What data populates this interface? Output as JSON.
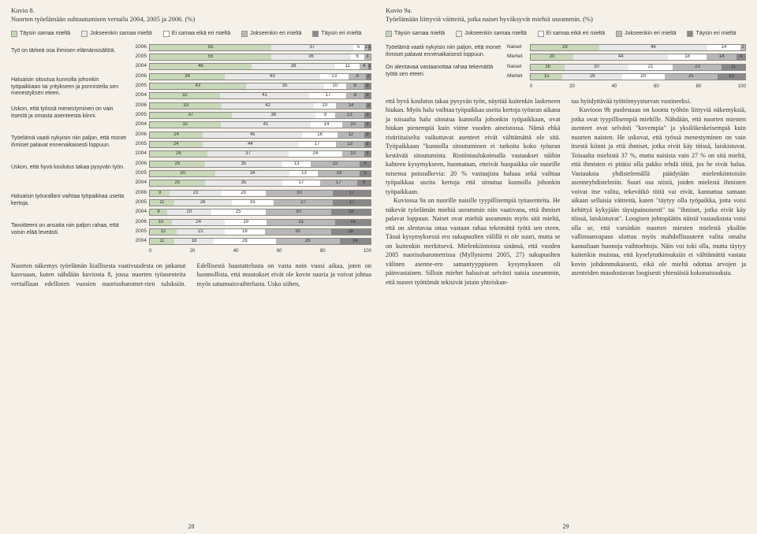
{
  "colors": {
    "c1": "#c8d8b8",
    "c2": "#e8e8e8",
    "c3": "#ffffff",
    "c4": "#b8b8b8",
    "c5": "#888888"
  },
  "left": {
    "kuvio_num": "Kuvio 8.",
    "kuvio_title": "Nuorten työelämään suhtautumisen vertailu 2004, 2005 ja 2006. (%)",
    "legend": [
      {
        "label": "Täysin samaa mieltä",
        "color": "c1"
      },
      {
        "label": "Jokseenkin samaa mieltä",
        "color": "c2"
      },
      {
        "label": "Ei samaa eikä eri mieltä",
        "color": "c3"
      },
      {
        "label": "Jokseenkin eri mieltä",
        "color": "c4"
      },
      {
        "label": "Täysin eri mieltä",
        "color": "c5"
      }
    ],
    "rows": [
      {
        "label": "Työ on tärkeä osa ihmisen elämänsisältöä.",
        "bars": [
          {
            "year": "2006",
            "v": [
              55,
              37,
              5,
              2,
              1
            ]
          },
          {
            "year": "2005",
            "v": [
              55,
              36,
              6,
              3,
              0
            ]
          },
          {
            "year": "2004",
            "v": [
              46,
              38,
              11,
              4,
              1
            ]
          }
        ]
      },
      {
        "label": "Haluaisin sitoutua kunnolla johonkin työpaikkaan tai yritykseen ja ponnistella sen menestyksen eteen.",
        "bars": [
          {
            "year": "2006",
            "v": [
              34,
              43,
              13,
              8,
              2
            ]
          },
          {
            "year": "2005",
            "v": [
              43,
              35,
              10,
              8,
              3
            ]
          },
          {
            "year": "2004",
            "v": [
              32,
              41,
              17,
              8,
              3
            ]
          }
        ]
      },
      {
        "label": "Uskon, että työssä menestyminen on vain itsestä ja omasta asenteesta kiinni.",
        "bars": [
          {
            "year": "2006",
            "v": [
              33,
              42,
              10,
              14,
              2
            ]
          },
          {
            "year": "2005",
            "v": [
              37,
              38,
              9,
              13,
              3
            ]
          },
          {
            "year": "2004",
            "v": [
              32,
              41,
              14,
              10,
              3
            ]
          }
        ]
      },
      {
        "label": "Työelämä vaatii nykyisin niin paljon, että monet ihmiset palavat ennenaikaisesti loppuun.",
        "bars": [
          {
            "year": "2006",
            "v": [
              24,
              45,
              16,
              12,
              3
            ]
          },
          {
            "year": "2005",
            "v": [
              24,
              44,
              17,
              13,
              3
            ]
          },
          {
            "year": "2004",
            "v": [
              26,
              37,
              24,
              10,
              3
            ]
          }
        ]
      },
      {
        "label": "Uskon, että hyvä koulutus takaa pysyvän työn.",
        "bars": [
          {
            "year": "2006",
            "v": [
              25,
              35,
              13,
              22,
              5
            ]
          },
          {
            "year": "2005",
            "v": [
              30,
              34,
              13,
              19,
              5
            ]
          },
          {
            "year": "2004",
            "v": [
              25,
              35,
              17,
              17,
              6
            ]
          }
        ]
      },
      {
        "label": "Haluaisin työurallani vaihtaa työpaikkaa useita kertoja.",
        "bars": [
          {
            "year": "2006",
            "v": [
              9,
              23,
              20,
              30,
              17
            ]
          },
          {
            "year": "2005",
            "v": [
              11,
              26,
              19,
              27,
              17
            ]
          },
          {
            "year": "2004",
            "v": [
              8,
              20,
              25,
              30,
              18
            ]
          }
        ]
      },
      {
        "label": "Tavoitteeni on ansaita niin paljon rahaa, että voisin elää leveästi.",
        "bars": [
          {
            "year": "2006",
            "v": [
              10,
              24,
              19,
              31,
              16
            ]
          },
          {
            "year": "2005",
            "v": [
              12,
              22,
              18,
              30,
              18
            ]
          },
          {
            "year": "2004",
            "v": [
              11,
              18,
              28,
              29,
              14
            ]
          }
        ]
      }
    ],
    "axis": [
      "0",
      "20",
      "40",
      "60",
      "80",
      "100"
    ],
    "body": "Nuorten näkemys työelämän liiallisesta vaativuudesta on jatkanut kasvuaan, kuten nähdään kuviosta 8, jossa nuorten työasenteita vertaillaan edellisten vuosien nuorisobaromet-rien tuloksiin. Edellisestä haastattelusta on vasta noin vuosi aikaa, joten on luonnollista, että muutokset eivät ole kovin suuria ja voivat johtua myös satunnaisvaihtelusta. Usko siihen,",
    "page": "28"
  },
  "right": {
    "kuvio_num": "Kuvio 9a.",
    "kuvio_title": "Työelämään liittyviä väitteitä, jotka naiset hyväksyvät miehiä useammin. (%)",
    "legend": [
      {
        "label": "Täysin samaa mieltä",
        "color": "c1"
      },
      {
        "label": "Jokseenkin samaa mieltä",
        "color": "c2"
      },
      {
        "label": "Ei samaa eikä eri mieltä",
        "color": "c3"
      },
      {
        "label": "Jokseenkin eri mieltä",
        "color": "c4"
      },
      {
        "label": "Täysin eri mieltä",
        "color": "c5"
      }
    ],
    "rows": [
      {
        "label": "Työelämä vaatii nykyisin niin paljon, että monet ihmiset palavat ennenaikaisesti loppuun.",
        "bars": [
          {
            "g": "Naiset",
            "v": [
              29,
              46,
              14,
              2,
              0
            ]
          },
          {
            "g": "Miehet",
            "v": [
              20,
              44,
              18,
              14,
              4
            ]
          }
        ]
      },
      {
        "label": "On alentavaa vastaanottaa rahaa tekemättä työtä sen eteen.",
        "bars": [
          {
            "g": "Naiset",
            "v": [
              16,
              30,
              21,
              23,
              11
            ]
          },
          {
            "g": "Miehet",
            "v": [
              15,
              28,
              20,
              25,
              13
            ]
          }
        ]
      }
    ],
    "axis": [
      "0",
      "20",
      "40",
      "60",
      "80",
      "100"
    ],
    "body_col1": "että hyvä koulutus takaa pysyvän työn, näyttää kuitenkin laskeneen hiukan. Myös halu vaihtaa työpaikkaa useita kertoja työuran aikana ja toisaalta halu sitoutua kunnolla johonkin työpaikkaan, ovat hiukan pienempiä kuin viime vuoden aineistossa. Nämä ehkä ristiriitaiselta vaikuttavat asenteet eivät välttämättä ole sitä. Työpaikkaan \"kunnolla sitoutuminen ei tarkoita koko työuran kestävää sitoutumista. Ristiintaulukoimalla vastaukset näihin kahteen kysymykseen, huomataan, etteivät huopaikka ole nuorille toisensa poissulkevia: 20 % vastaajista haluaa sekä vaihtaa työpaikkaa useita kertoja että sitoutua kunnolla johonkin työpaikkaan.|Kuviossa 9a on nuorille naisille tyypillisempiä työasenteita. He näkevät työelämän miehiä useammin niin vaativana, että ihmiset palavat loppuun. Naiset ovat miehiä useammin myös sitä mieltä, että on alentavaa ottaa vastaan rahaa tekemättä työtä sen eteen. Tässä kysymyksessä ero sukupuolten välillä ei ole suuri, mutta se on kuitenkin merkitsevä. Mielenkiintoista sinänsä, että vuoden 2005 nuorisobarometrissa (Myllyniemi 2005, 27) sukupuolten välinen asenne-ero samantyyppiseen kysymykseen oli päinvastainen. Silloin miehet halusivat selvästi naisia useammin, että nuoret työttömät tekisivät jotain yhteiskun-",
    "body_col2": "taa hyödyttävää työttömyysturvan vastineeksi.|Kuvioon 9b puolestaan on koottu työhön liittyviä näkemyksiä, jotka ovat tyypillisempiä miehille. Nähdään, että nuorten miesten asenteet ovat selvästi \"kovempia\" ja yksilökeskeisempiä kuin nuorten naisten. He uskovat, että työssä menestyminen on vain itsestä kiinni ja että ihmiset, jotka eivät käy töissä, laiskistuvat. Toisaalta miehistä 37 %, mutta naisista vain 27 % on sitä mieltä, että ihmisten ei pitäisi olla pakko tehdä töitä, jos he eivät halua. Vastauksia yhdistelemällä päädytään mielenkiintoisiin asenneyhdistelmiin. Suuri osa niistä, joiden mielestä ihmisten voivat itse valita, tekevätkö töitä vai eivät, kannattaa samaan aikaan sellaisia väitteitä, kuten \"täytyy olla työpaikka, jotta voisi kehittyä kykyjään täysipainoisesti\" tai \"ihmiset, jotka eivät käy töissä, laiskistuvat\". Loogisen johtopäätös näistä vastauksista voisi olla se, että varsinkin nuorten miesten mielestä yksilön vallinnanvapaus ulottuu myös mahdollisuuteen valita omalta kannaltaan huonoja vaihtoehtoja. Näin voi toki olla, mutta täytyy kuitenkin muistaa, että kyselytutkimuksiin ei välttämättä vastata kovin johdonmukaisesti, eikä ole mieltä odottaa arvojen ja asenteiden muodostavan loogisesti yhtenäisiä kokonaisuuksia.",
    "page": "29"
  }
}
